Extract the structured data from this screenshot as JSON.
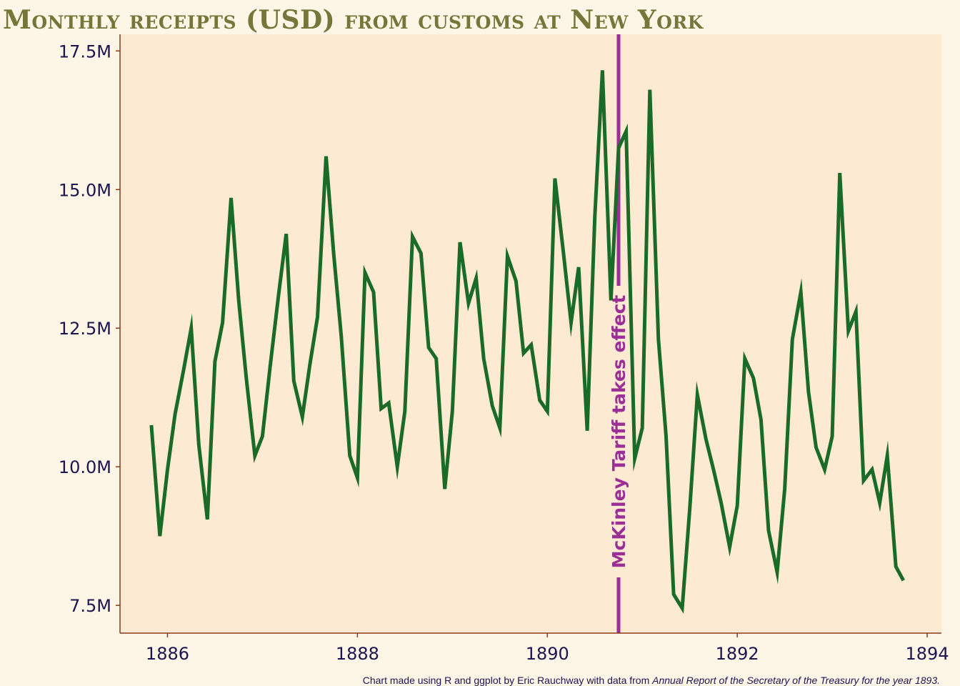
{
  "chart_data": {
    "type": "line",
    "title": "Monthly receipts (USD) from customs at New York",
    "xlabel": "",
    "ylabel": "",
    "xlim": [
      1885.5,
      1894.15
    ],
    "ylim": [
      7.0,
      17.8
    ],
    "x_ticks": [
      1886,
      1888,
      1890,
      1892,
      1894
    ],
    "x_tick_labels": [
      "1886",
      "1888",
      "1890",
      "1892",
      "1894"
    ],
    "y_ticks": [
      7.5,
      10.0,
      12.5,
      15.0,
      17.5
    ],
    "y_tick_labels": [
      "7.5M",
      "10.0M",
      "12.5M",
      "15.0M",
      "17.5M"
    ],
    "y_unit": "million USD",
    "grid": false,
    "legend": "none",
    "series": [
      {
        "color": "#1a6b28",
        "x": [
          1885.83,
          1885.92,
          1886.0,
          1886.08,
          1886.17,
          1886.25,
          1886.33,
          1886.42,
          1886.5,
          1886.58,
          1886.67,
          1886.75,
          1886.83,
          1886.92,
          1887.0,
          1887.08,
          1887.17,
          1887.25,
          1887.33,
          1887.42,
          1887.5,
          1887.58,
          1887.67,
          1887.75,
          1887.83,
          1887.92,
          1888.0,
          1888.08,
          1888.17,
          1888.25,
          1888.33,
          1888.42,
          1888.5,
          1888.58,
          1888.67,
          1888.75,
          1888.83,
          1888.92,
          1889.0,
          1889.08,
          1889.17,
          1889.25,
          1889.33,
          1889.42,
          1889.5,
          1889.58,
          1889.67,
          1889.75,
          1889.83,
          1889.92,
          1890.0,
          1890.08,
          1890.17,
          1890.25,
          1890.33,
          1890.42,
          1890.5,
          1890.58,
          1890.67,
          1890.75,
          1890.83,
          1890.92,
          1891.0,
          1891.08,
          1891.17,
          1891.25,
          1891.33,
          1891.42,
          1891.5,
          1891.58,
          1891.67,
          1891.75,
          1891.83,
          1891.92,
          1892.0,
          1892.08,
          1892.17,
          1892.25,
          1892.33,
          1892.42,
          1892.5,
          1892.58,
          1892.67,
          1892.75,
          1892.83,
          1892.92,
          1893.0,
          1893.08,
          1893.17,
          1893.25,
          1893.33,
          1893.42,
          1893.5,
          1893.58,
          1893.67,
          1893.75
        ],
        "y": [
          10.75,
          8.75,
          9.95,
          10.95,
          11.75,
          12.5,
          10.4,
          9.05,
          11.9,
          12.6,
          14.85,
          13.0,
          11.6,
          10.2,
          10.55,
          11.8,
          13.1,
          14.2,
          11.55,
          10.9,
          11.85,
          12.7,
          15.6,
          13.85,
          12.35,
          10.2,
          9.8,
          13.5,
          13.15,
          11.05,
          11.15,
          10.0,
          11.0,
          14.15,
          13.85,
          12.15,
          11.95,
          9.6,
          11.0,
          14.05,
          12.95,
          13.4,
          11.95,
          11.1,
          10.7,
          13.8,
          13.35,
          12.05,
          12.2,
          11.2,
          11.0,
          15.2,
          13.85,
          12.6,
          13.6,
          10.65,
          14.5,
          17.15,
          13.0,
          15.75,
          16.05,
          10.15,
          10.7,
          16.8,
          12.3,
          10.55,
          7.7,
          7.45,
          9.25,
          11.3,
          10.5,
          9.95,
          9.35,
          8.55,
          9.3,
          11.95,
          11.6,
          10.85,
          8.85,
          8.1,
          9.6,
          12.3,
          13.15,
          11.35,
          10.35,
          9.95,
          10.55,
          15.3,
          12.45,
          12.8,
          9.75,
          9.95,
          9.35,
          10.2,
          8.2,
          7.95
        ]
      }
    ],
    "annotations": [
      {
        "type": "vline",
        "x": 1890.75,
        "label": "McKinley Tariff takes effect",
        "color": "#9b2f96"
      }
    ],
    "caption_prefix": "Chart made using R and ggplot by Eric Rauchway with data from ",
    "caption_source": "Annual Report of the Secretary of the Treasury for the year 1893.",
    "colors": {
      "page_background": "#fdf5e6",
      "panel_background": "#fdead2",
      "axis": "#8b3a1a",
      "title": "#76753a",
      "tick_text": "#1c1550"
    }
  }
}
